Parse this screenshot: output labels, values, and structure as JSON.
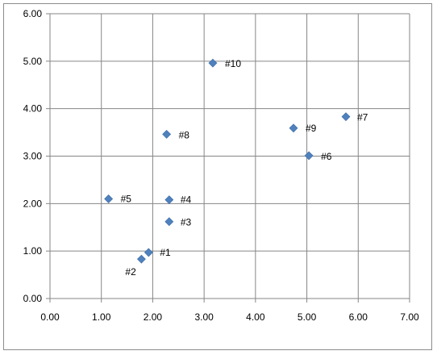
{
  "chart_data": {
    "type": "scatter",
    "title": "",
    "xlabel": "",
    "ylabel": "",
    "xlim": [
      0,
      7
    ],
    "ylim": [
      0,
      6
    ],
    "x_ticks": [
      "0.00",
      "1.00",
      "2.00",
      "3.00",
      "4.00",
      "5.00",
      "6.00",
      "7.00"
    ],
    "y_ticks": [
      "0.00",
      "1.00",
      "2.00",
      "3.00",
      "4.00",
      "5.00",
      "6.00"
    ],
    "grid": true,
    "legend": "none",
    "marker_color": "#4f81bd",
    "points": [
      {
        "label": "#1",
        "x": 1.92,
        "y": 0.97
      },
      {
        "label": "#2",
        "x": 1.78,
        "y": 0.83
      },
      {
        "label": "#3",
        "x": 2.32,
        "y": 1.62
      },
      {
        "label": "#4",
        "x": 2.32,
        "y": 2.08
      },
      {
        "label": "#5",
        "x": 1.14,
        "y": 2.1
      },
      {
        "label": "#6",
        "x": 5.04,
        "y": 3.01
      },
      {
        "label": "#7",
        "x": 5.76,
        "y": 3.83
      },
      {
        "label": "#8",
        "x": 2.27,
        "y": 3.46
      },
      {
        "label": "#9",
        "x": 4.74,
        "y": 3.59
      },
      {
        "label": "#10",
        "x": 3.17,
        "y": 4.96
      }
    ]
  }
}
